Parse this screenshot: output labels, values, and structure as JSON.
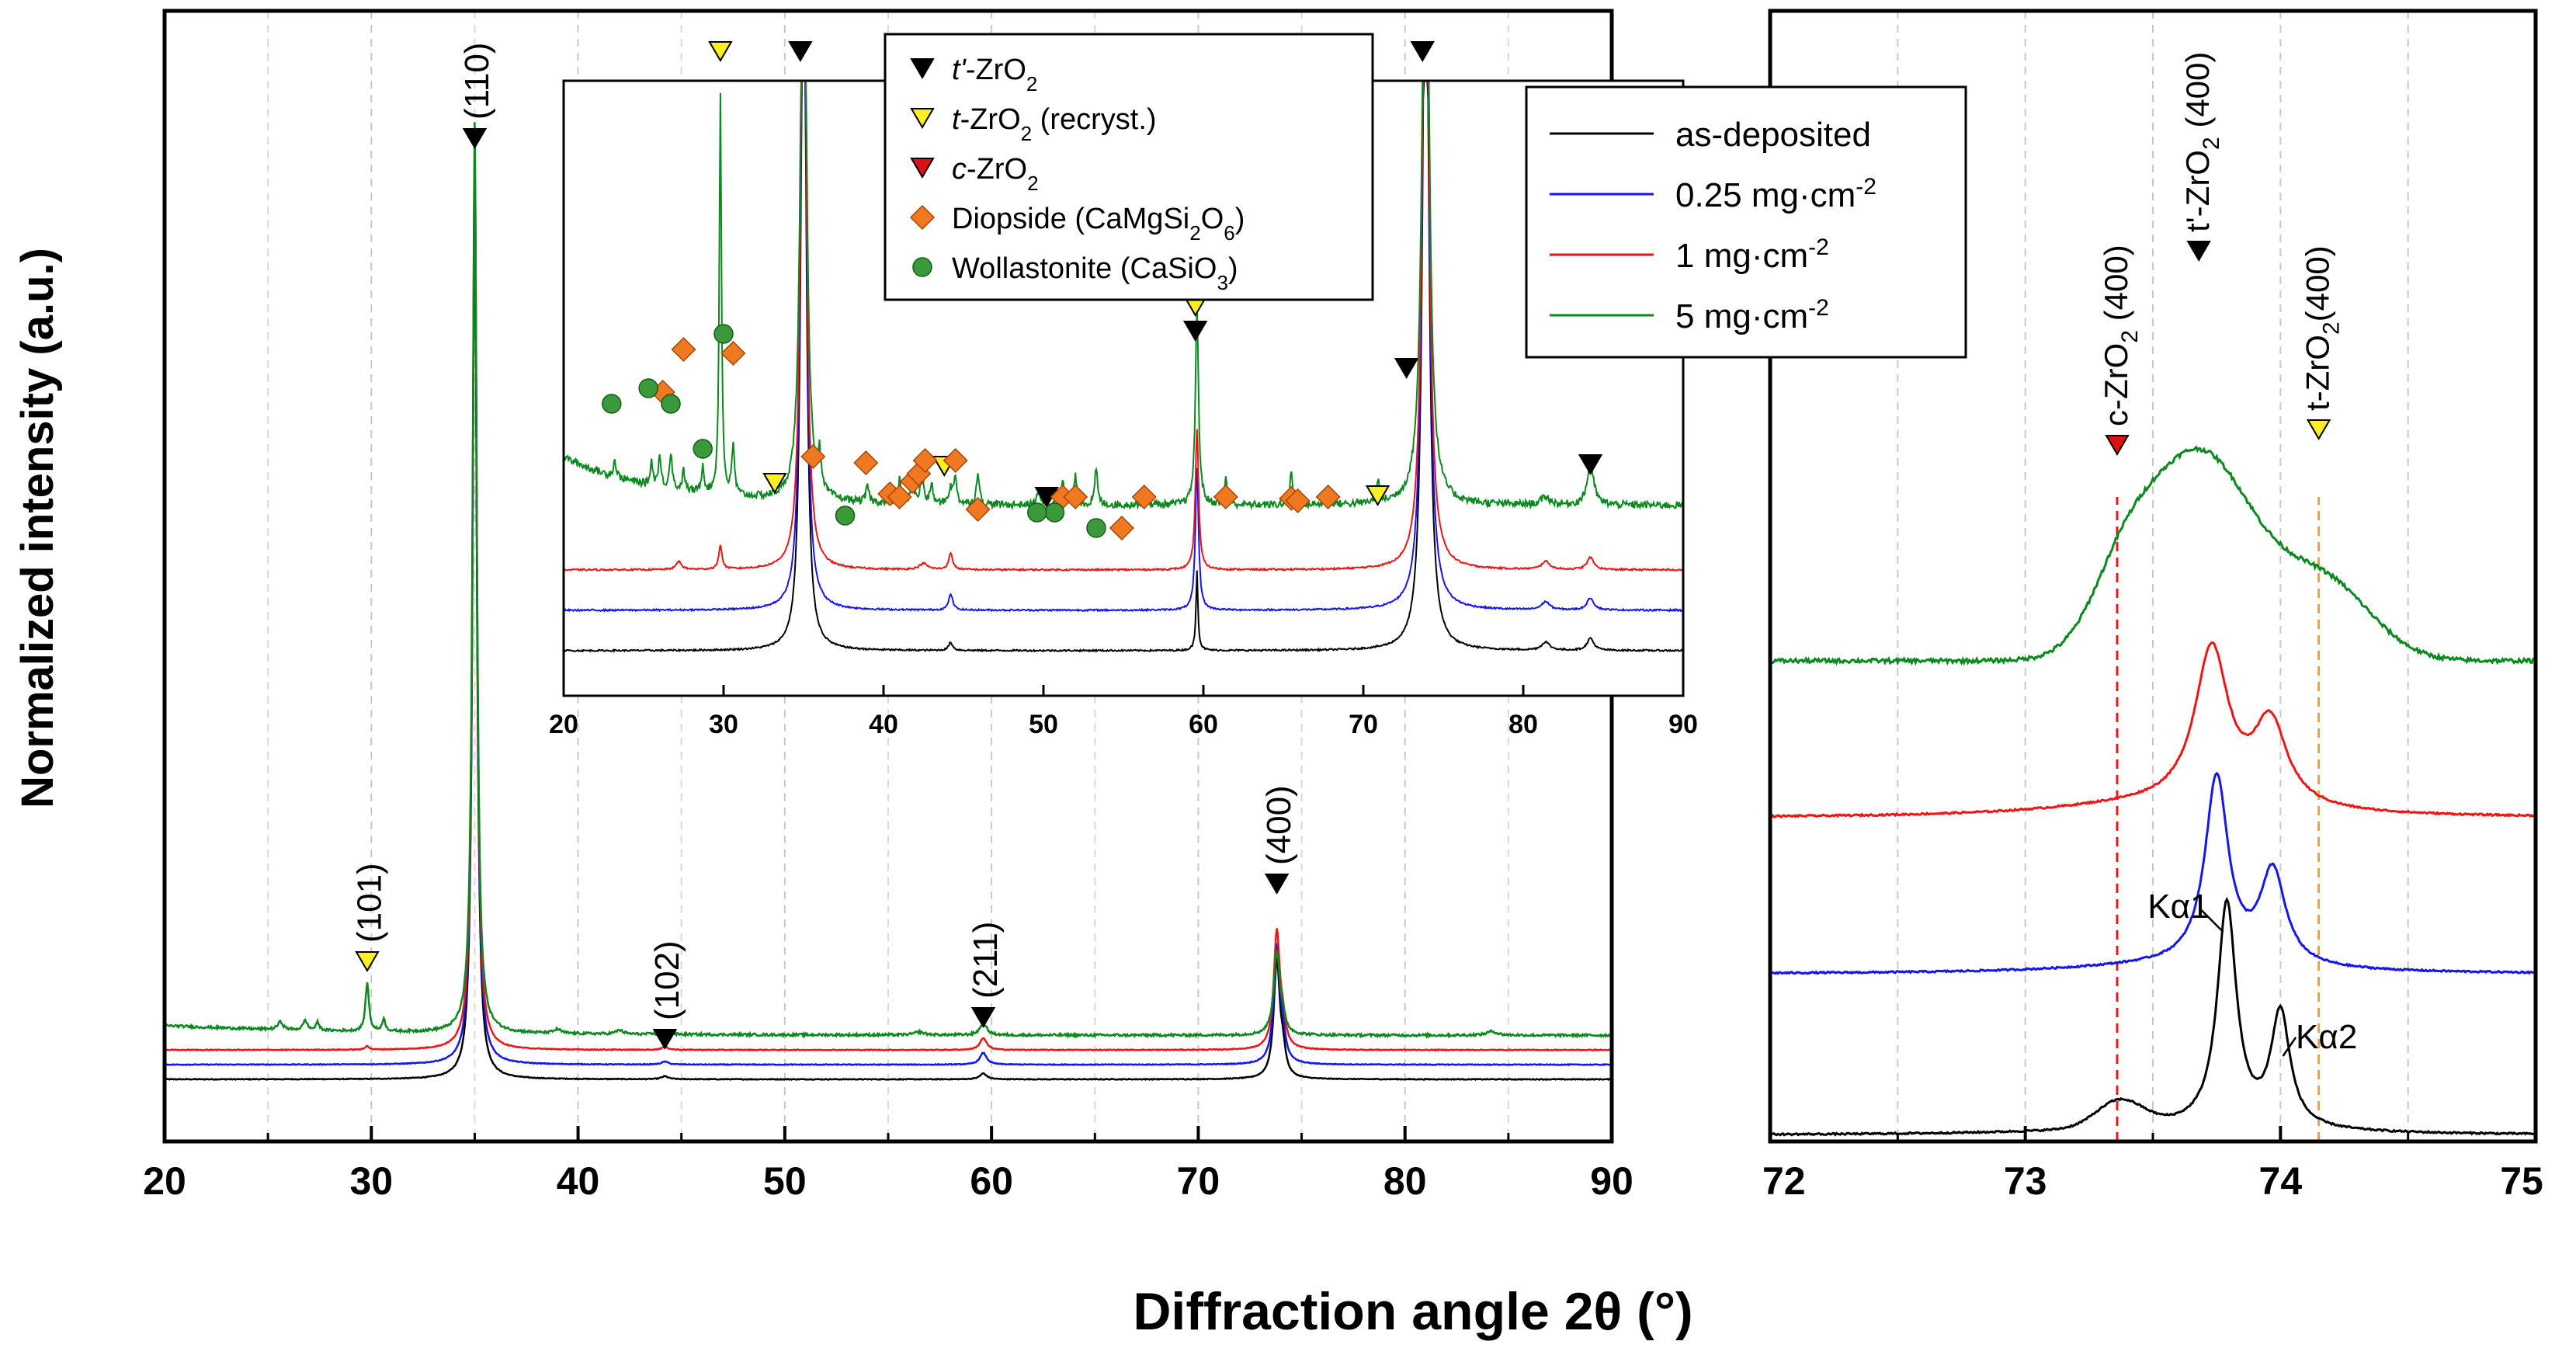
{
  "chart_data": {
    "type": "line",
    "xlabel": "Diffraction angle 2θ (°)",
    "ylabel": "Normalized intensity (a.u.)",
    "colors": {
      "as-deposited": "#000000",
      "0.25": "#1515ee",
      "1": "#ee1515",
      "5": "#0a8a1e",
      "t_prime_marker": "#000000",
      "t_recryst_marker": "#ffee22",
      "c_marker": "#dd1111",
      "diopside_marker": "#f07820",
      "wollastonite_marker": "#3a9a3a"
    },
    "legend": {
      "position": "top-right of main panel",
      "entries": [
        {
          "key": "as-deposited",
          "label": "as-deposited"
        },
        {
          "key": "0.25",
          "label": "0.25 mg·cm",
          "sup": "-2"
        },
        {
          "key": "1",
          "label": "1 mg·cm",
          "sup": "-2"
        },
        {
          "key": "5",
          "label": "5 mg·cm",
          "sup": "-2"
        }
      ]
    },
    "phase_legend": {
      "position": "top-center of inset",
      "entries": [
        {
          "marker": "down-triangle-black",
          "italic": "t'",
          "text": "-ZrO",
          "sub": "2",
          "after": ""
        },
        {
          "marker": "down-triangle-yellow",
          "italic": "t",
          "text": "-ZrO",
          "sub": "2",
          "after": " (recryst.)"
        },
        {
          "marker": "down-triangle-red",
          "italic": "c",
          "text": "-ZrO",
          "sub": "2",
          "after": ""
        },
        {
          "marker": "diamond-orange",
          "italic": "",
          "text": "Diopside (CaMgSi",
          "sub": "2",
          "text2": "O",
          "sub2": "6",
          "after": ")"
        },
        {
          "marker": "circle-green",
          "italic": "",
          "text": "Wollastonite (CaSiO",
          "sub": "3",
          "after": ")"
        }
      ]
    },
    "panels": [
      {
        "id": "main",
        "xlim": [
          20,
          90
        ],
        "xticks": [
          20,
          30,
          40,
          50,
          60,
          70,
          80,
          90
        ],
        "minor_grid": [
          25,
          35,
          45,
          55,
          65,
          75,
          85
        ],
        "ylim": [
          0,
          1
        ],
        "series_offsets": {
          "as-deposited": 0.0,
          "0.25": 0.015,
          "1": 0.03,
          "5": 0.045
        },
        "peak_labels": [
          {
            "x": 29.8,
            "text": "(101)",
            "marker": "yellow"
          },
          {
            "x": 35.0,
            "text": "(110)",
            "marker": "black"
          },
          {
            "x": 44.2,
            "text": "(102)",
            "marker": "black"
          },
          {
            "x": 59.6,
            "text": "(211)",
            "marker": "black"
          },
          {
            "x": 73.8,
            "text": "(400)",
            "marker": "black"
          }
        ]
      },
      {
        "id": "inset",
        "xlim": [
          20,
          90
        ],
        "xticks": [
          20,
          30,
          40,
          50,
          60,
          70,
          80,
          90
        ],
        "ylim": [
          0,
          1
        ],
        "series_offsets": {
          "as-deposited": 0.0,
          "0.25": 0.1,
          "1": 0.2,
          "5": 0.36
        },
        "markers": {
          "t_prime": [
            34.8,
            50.2,
            59.5,
            72.7,
            73.7,
            84.2
          ],
          "t_recryst": [
            29.8,
            33.2,
            43.8,
            59.5,
            70.9
          ],
          "diopside": [
            26.2,
            27.5,
            30.6,
            35.6,
            38.9,
            40.4,
            41.0,
            41.8,
            42.2,
            42.6,
            44.5,
            45.9,
            51.2,
            52.0,
            54.9,
            56.3,
            61.4,
            67.8,
            65.5,
            65.9
          ],
          "wollastonite": [
            23.0,
            25.3,
            26.7,
            28.7,
            30.0,
            37.6,
            50.7,
            53.3,
            49.6
          ]
        }
      },
      {
        "id": "zoom",
        "xlim": [
          72,
          75
        ],
        "xticks": [
          72,
          73,
          74,
          75
        ],
        "minor_grid": [
          72.5,
          73.5,
          74.5
        ],
        "ylim": [
          0,
          1
        ],
        "series_offsets": {
          "as-deposited": 0.0,
          "0.25": 0.155,
          "1": 0.305,
          "5": 0.465
        },
        "ref_lines": [
          {
            "x": 73.36,
            "color": "#ee1515",
            "label_parts": [
              "c-ZrO",
              "2",
              " (400)"
            ],
            "marker": "red"
          },
          {
            "x": 73.68,
            "color": "#000000",
            "label_parts": [
              "t'-ZrO",
              "2",
              " (400)"
            ],
            "marker": "black"
          },
          {
            "x": 74.15,
            "color": "#f0a040",
            "label_parts": [
              "t-ZrO",
              "2",
              "(400)"
            ],
            "marker": "yellow"
          }
        ],
        "annotations": [
          {
            "text": "Kα1",
            "x": 73.79
          },
          {
            "text": "Kα2",
            "x": 74.01
          }
        ]
      }
    ]
  }
}
